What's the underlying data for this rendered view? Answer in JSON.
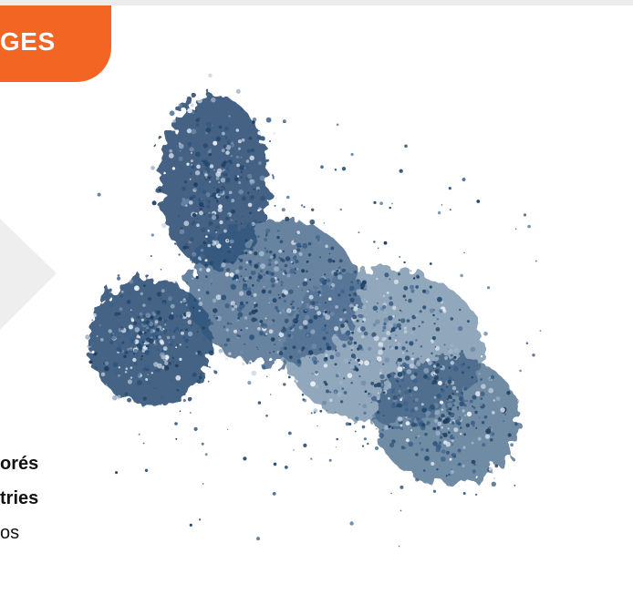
{
  "tab": {
    "label": "GES"
  },
  "caption": {
    "heading_lines": [
      "orés",
      "tries"
    ],
    "body": "os"
  }
}
